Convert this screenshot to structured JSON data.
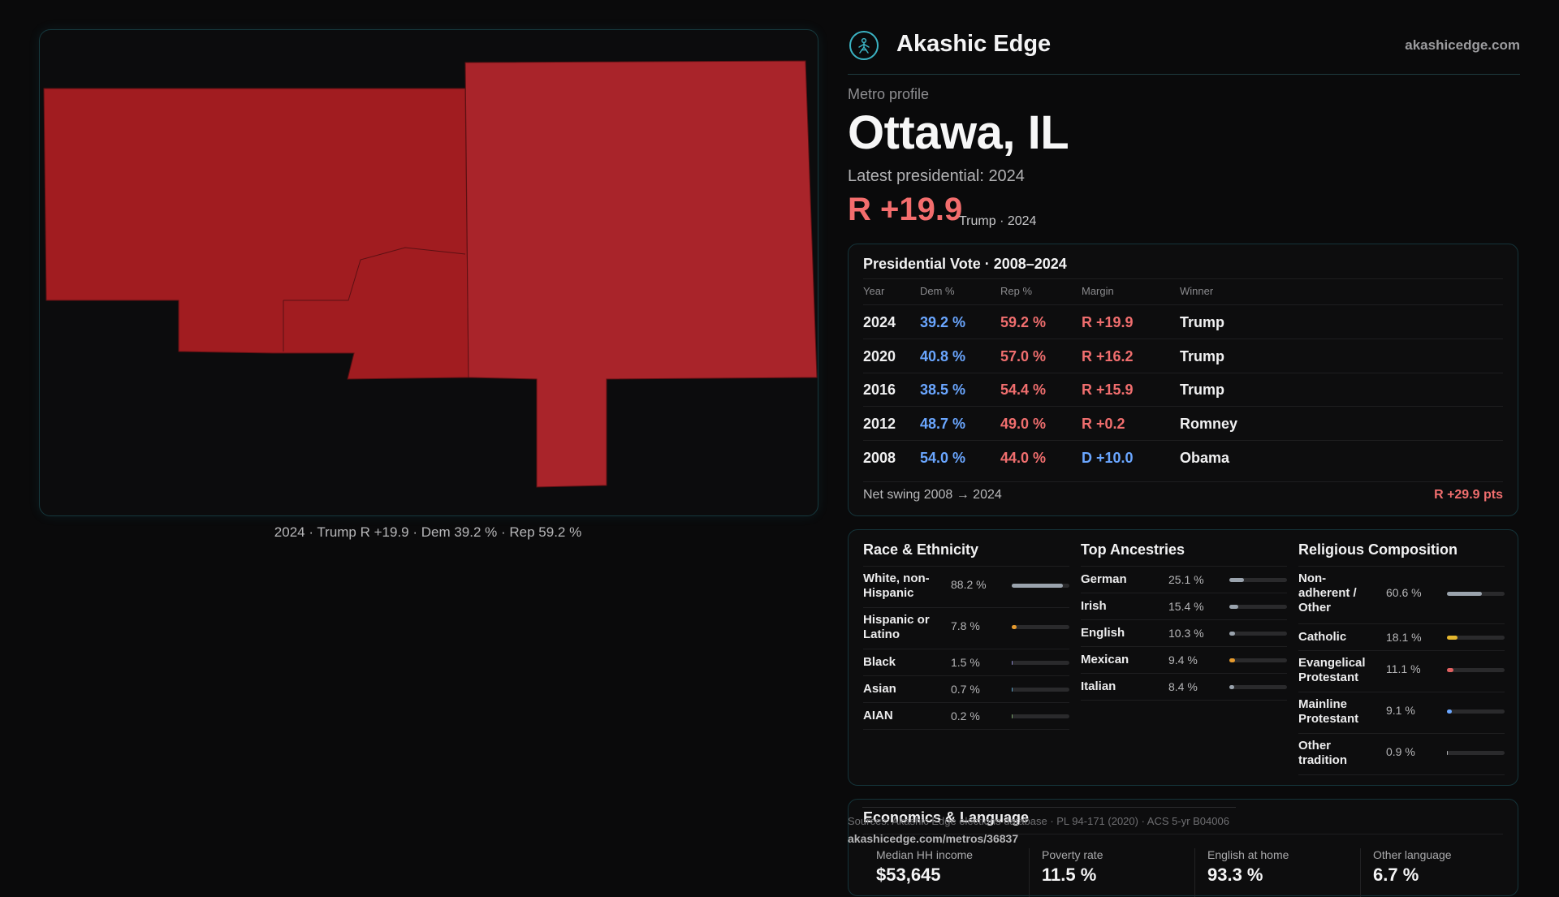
{
  "map": {
    "caption": "2024 · Trump R +19.9 · Dem 39.2 % · Rep 59.2 %",
    "fill_color": "#a71f23"
  },
  "brand": {
    "name": "Akashic Edge",
    "site": "akashicedge.com",
    "accent": "#3bb3c3"
  },
  "profile": {
    "kicker": "Metro profile",
    "name": "Ottawa, IL",
    "latest_label": "Latest presidential: 2024",
    "margin": "R +19.9",
    "margin_sub": "Trump · 2024"
  },
  "vote": {
    "title": "Presidential Vote · 2008–2024",
    "headers": {
      "year": "Year",
      "dem": "Dem %",
      "rep": "Rep %",
      "margin": "Margin",
      "winner": "Winner"
    },
    "rows": [
      {
        "year": "2024",
        "dem": "39.2 %",
        "rep": "59.2 %",
        "margin": "R +19.9",
        "party": "R",
        "winner": "Trump"
      },
      {
        "year": "2020",
        "dem": "40.8 %",
        "rep": "57.0 %",
        "margin": "R +16.2",
        "party": "R",
        "winner": "Trump"
      },
      {
        "year": "2016",
        "dem": "38.5 %",
        "rep": "54.4 %",
        "margin": "R +15.9",
        "party": "R",
        "winner": "Trump"
      },
      {
        "year": "2012",
        "dem": "48.7 %",
        "rep": "49.0 %",
        "margin": "R +0.2",
        "party": "R",
        "winner": "Romney"
      },
      {
        "year": "2008",
        "dem": "54.0 %",
        "rep": "44.0 %",
        "margin": "D +10.0",
        "party": "D",
        "winner": "Obama"
      }
    ],
    "net_label": "Net swing 2008 → 2024",
    "net_value": "R +29.9 pts"
  },
  "race": {
    "title": "Race & Ethnicity",
    "items": [
      {
        "label": "White, non-Hispanic",
        "value": "88.2 %",
        "pct": 88.2,
        "color": "#9aa3ad"
      },
      {
        "label": "Hispanic or Latino",
        "value": "7.8 %",
        "pct": 7.8,
        "color": "#e59a2e"
      },
      {
        "label": "Black",
        "value": "1.5 %",
        "pct": 1.5,
        "color": "#8a86c9"
      },
      {
        "label": "Asian",
        "value": "0.7 %",
        "pct": 0.7,
        "color": "#5aa0c8"
      },
      {
        "label": "AIAN",
        "value": "0.2 %",
        "pct": 0.2,
        "color": "#7aa36a"
      }
    ]
  },
  "ancestry": {
    "title": "Top Ancestries",
    "items": [
      {
        "label": "German",
        "value": "25.1 %",
        "pct": 25.1,
        "color": "#9aa3ad"
      },
      {
        "label": "Irish",
        "value": "15.4 %",
        "pct": 15.4,
        "color": "#9aa3ad"
      },
      {
        "label": "English",
        "value": "10.3 %",
        "pct": 10.3,
        "color": "#9aa3ad"
      },
      {
        "label": "Mexican",
        "value": "9.4 %",
        "pct": 9.4,
        "color": "#e59a2e"
      },
      {
        "label": "Italian",
        "value": "8.4 %",
        "pct": 8.4,
        "color": "#9aa3ad"
      }
    ]
  },
  "religion": {
    "title": "Religious Composition",
    "items": [
      {
        "label": "Non-adherent / Other",
        "value": "60.6 %",
        "pct": 60.6,
        "color": "#9aa3ad"
      },
      {
        "label": "Catholic",
        "value": "18.1 %",
        "pct": 18.1,
        "color": "#e5b72e"
      },
      {
        "label": "Evangelical Protestant",
        "value": "11.1 %",
        "pct": 11.1,
        "color": "#e06060"
      },
      {
        "label": "Mainline Protestant",
        "value": "9.1 %",
        "pct": 9.1,
        "color": "#6aa6ff"
      },
      {
        "label": "Other tradition",
        "value": "0.9 %",
        "pct": 0.9,
        "color": "#b0b0b3"
      }
    ]
  },
  "economics": {
    "title": "Economics & Language",
    "stats": [
      {
        "label": "Median HH income",
        "value": "$53,645"
      },
      {
        "label": "Poverty rate",
        "value": "11.5 %"
      },
      {
        "label": "English at home",
        "value": "93.3 %"
      },
      {
        "label": "Other language",
        "value": "6.7 %"
      }
    ]
  },
  "footer": {
    "sources": "Sources: Akashic Edge elections database · PL 94-171 (2020) · ACS 5-yr B04006",
    "permalink": "akashicedge.com/metros/36837"
  }
}
